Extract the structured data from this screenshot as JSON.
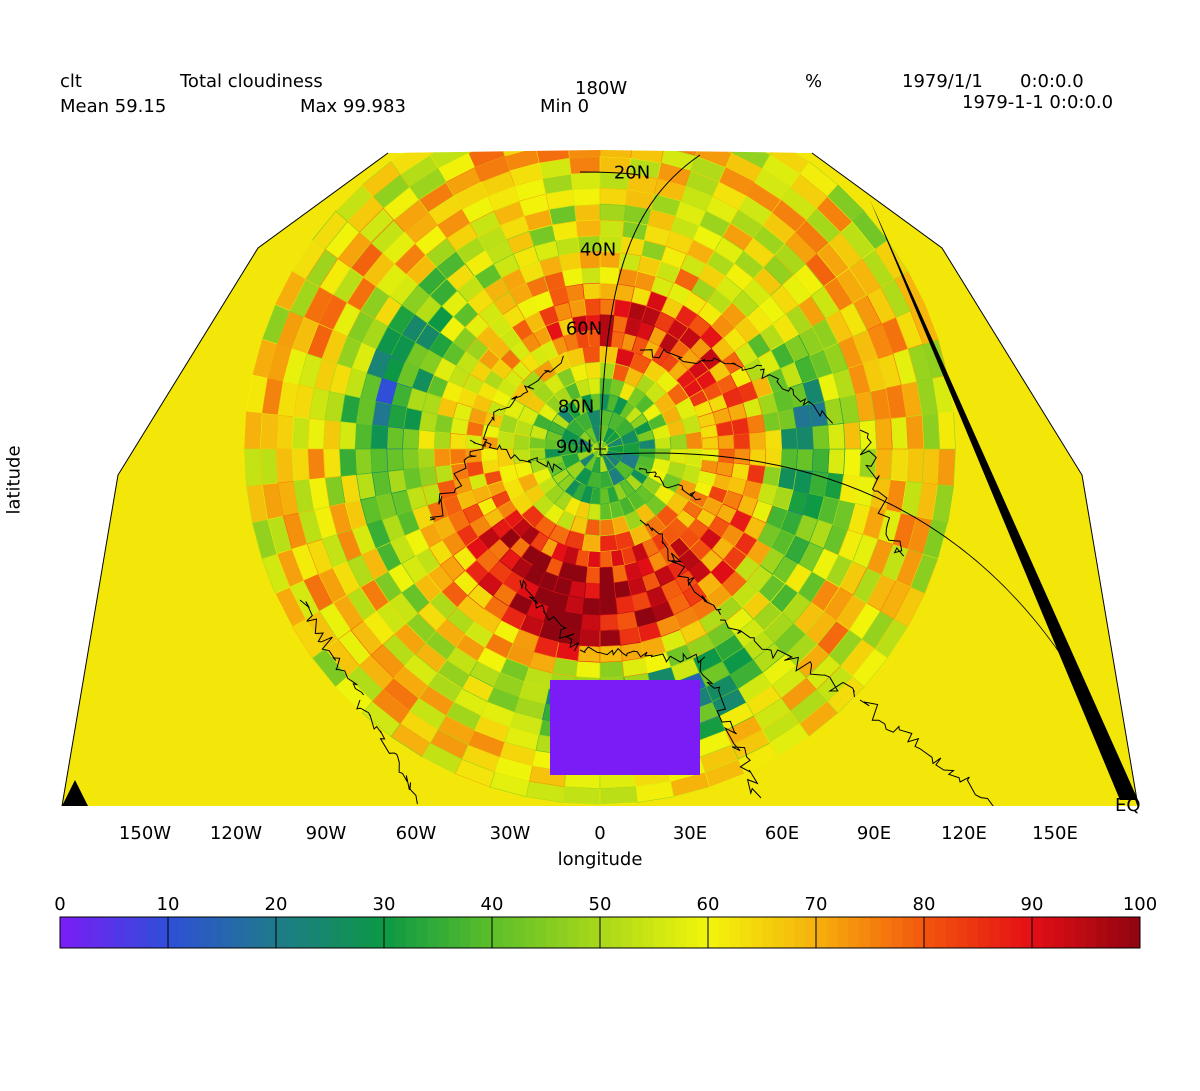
{
  "header": {
    "variable": "clt",
    "long_name": "Total cloudiness",
    "center_lon": "180W",
    "units": "%",
    "date": "1979/1/1",
    "time": "0:0:0.0",
    "timestamp": "1979-1-1 0:0:0.0",
    "mean": "Mean 59.15",
    "max": "Max 99.983",
    "min": "Min 0"
  },
  "axes": {
    "xlabel": "longitude",
    "ylabel": "latitude",
    "lon_ticks": [
      "150W",
      "120W",
      "90W",
      "60W",
      "30W",
      "0",
      "30E",
      "60E",
      "90E",
      "120E",
      "150E"
    ],
    "lat_ticks": [
      "20N",
      "40N",
      "60N",
      "80N",
      "90N"
    ],
    "eq_label": "EQ"
  },
  "colorbar": {
    "ticks": [
      "0",
      "10",
      "20",
      "30",
      "40",
      "50",
      "60",
      "70",
      "80",
      "90",
      "100"
    ],
    "colors": [
      "#7b1cf6",
      "#2f4fd8",
      "#1f7a8a",
      "#0c9845",
      "#5cbf2a",
      "#a8d81a",
      "#f2f50a",
      "#f6b10c",
      "#f3560e",
      "#e40e16",
      "#8e0410"
    ]
  },
  "map_colors": {
    "ocean_base": "#c8e51a",
    "arctic": "#5cbf2a",
    "storm_track": "#e40e16",
    "sahara": "#7b1cf6",
    "coast": "#000000"
  }
}
